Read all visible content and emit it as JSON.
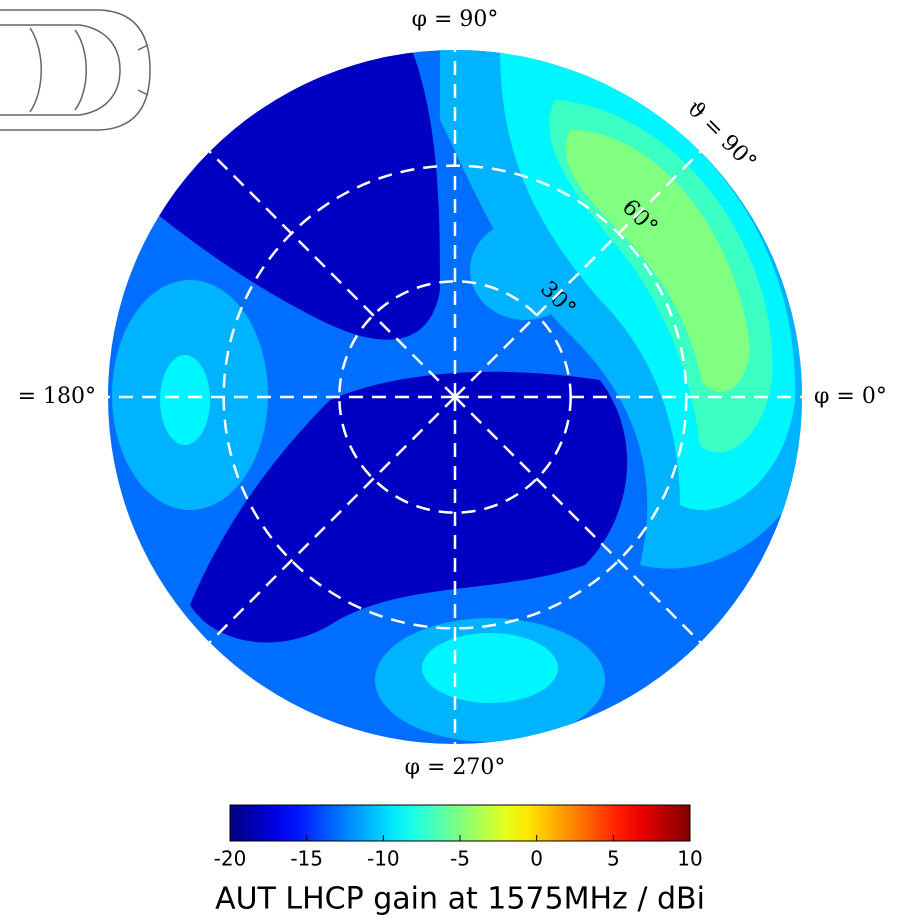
{
  "chart_data": {
    "type": "polar_contour",
    "colormap": "jet",
    "regions": [
      {
        "value": -13
      },
      {
        "value": -18
      },
      {
        "value": -18
      },
      {
        "value": -11
      },
      {
        "value": -9
      },
      {
        "value": -11
      },
      {
        "value": -9
      },
      {
        "value": -11
      },
      {
        "value": -11
      },
      {
        "value": -9
      },
      {
        "value": -7
      },
      {
        "value": -5
      }
    ],
    "rlim": [
      0,
      90
    ],
    "rticks": [
      {
        "value": 30,
        "label": "30°"
      },
      {
        "value": 60,
        "label": "60°"
      },
      {
        "value": 90,
        "label": "ϑ = 90°"
      }
    ],
    "phiticks": [
      {
        "value": 0,
        "label": "φ = 0°"
      },
      45,
      {
        "value": 90,
        "label": "φ = 90°"
      },
      135,
      {
        "value": 180,
        "label": "= 180°"
      },
      225,
      {
        "value": 270,
        "label": "φ = 270°"
      },
      315
    ],
    "colorbar": {
      "label": "AUT LHCP gain at 1575MHz / dBi",
      "lim": [
        -20,
        10
      ],
      "ticks": [
        -20,
        -15,
        -10,
        -5,
        0,
        5,
        10
      ]
    }
  }
}
